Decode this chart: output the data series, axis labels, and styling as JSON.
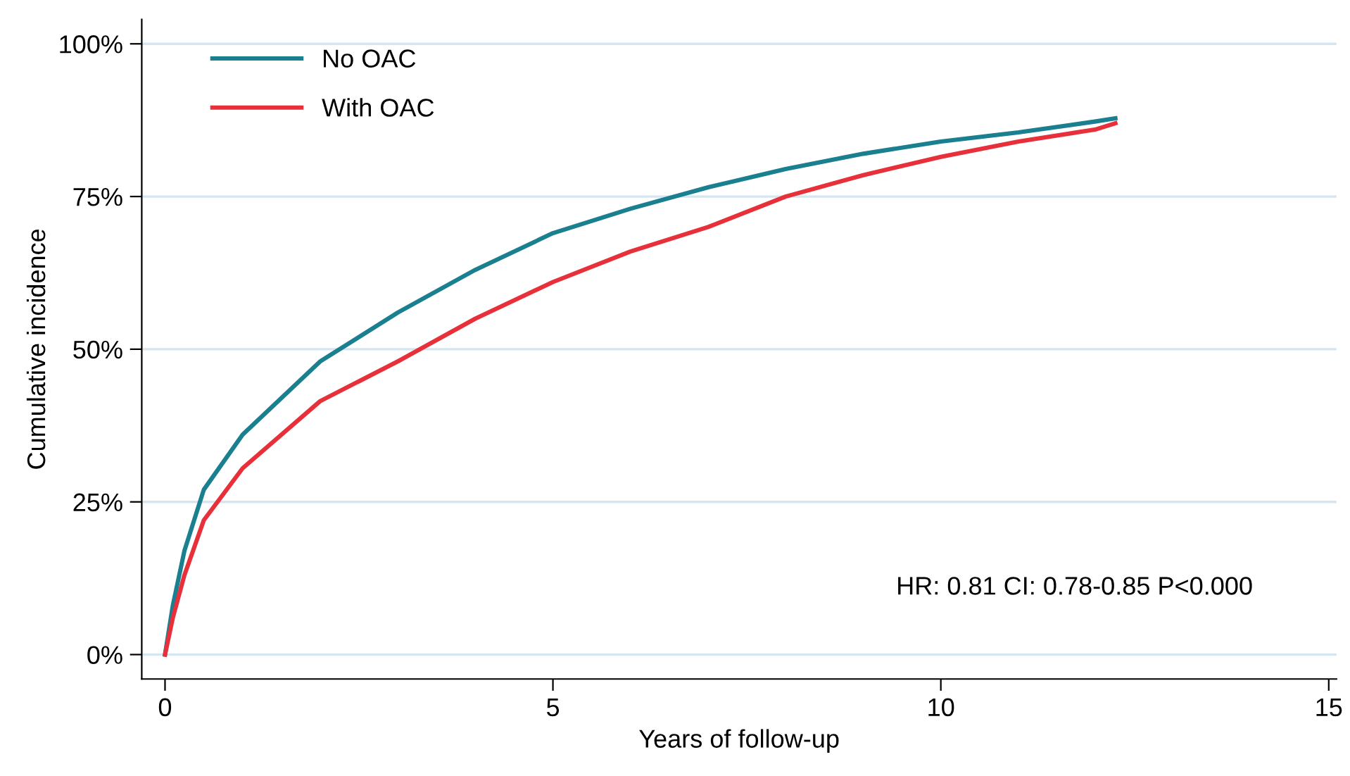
{
  "chart_data": {
    "type": "line",
    "xlabel": "Years of follow-up",
    "ylabel": "Cumulative incidence",
    "xlim": [
      -0.3,
      15.1
    ],
    "xticks": [
      0,
      5,
      10,
      15
    ],
    "ylim": [
      -4,
      104
    ],
    "yticks": [
      {
        "value": 0,
        "label": "0%"
      },
      {
        "value": 25,
        "label": "25%"
      },
      {
        "value": 50,
        "label": "50%"
      },
      {
        "value": 75,
        "label": "75%"
      },
      {
        "value": 100,
        "label": "100%"
      }
    ],
    "grid": "y",
    "legend": "top left",
    "marker": "none",
    "line_style": "solid",
    "series": [
      {
        "name": "No OAC",
        "color": "#1a7f8e",
        "x": [
          0,
          0.1,
          0.25,
          0.5,
          1,
          2,
          3,
          4,
          5,
          6,
          7,
          8,
          9,
          10,
          11,
          12,
          12.25
        ],
        "values": [
          0,
          8,
          17,
          27,
          36,
          48,
          56,
          63,
          69,
          73,
          76.5,
          79.5,
          82,
          84,
          85.5,
          87.3,
          87.8
        ]
      },
      {
        "name": "With OAC",
        "color": "#e8303a",
        "x": [
          0,
          0.1,
          0.25,
          0.5,
          1,
          2,
          3,
          4,
          5,
          6,
          7,
          8,
          9,
          10,
          11,
          12,
          12.25
        ],
        "values": [
          0,
          6,
          13,
          22,
          30.5,
          41.5,
          48,
          55,
          61,
          66,
          70,
          75,
          78.5,
          81.5,
          84,
          86,
          87
        ]
      }
    ],
    "annotations": [
      "HR: 0.81 CI: 0.78-0.85 P<0.000"
    ]
  }
}
